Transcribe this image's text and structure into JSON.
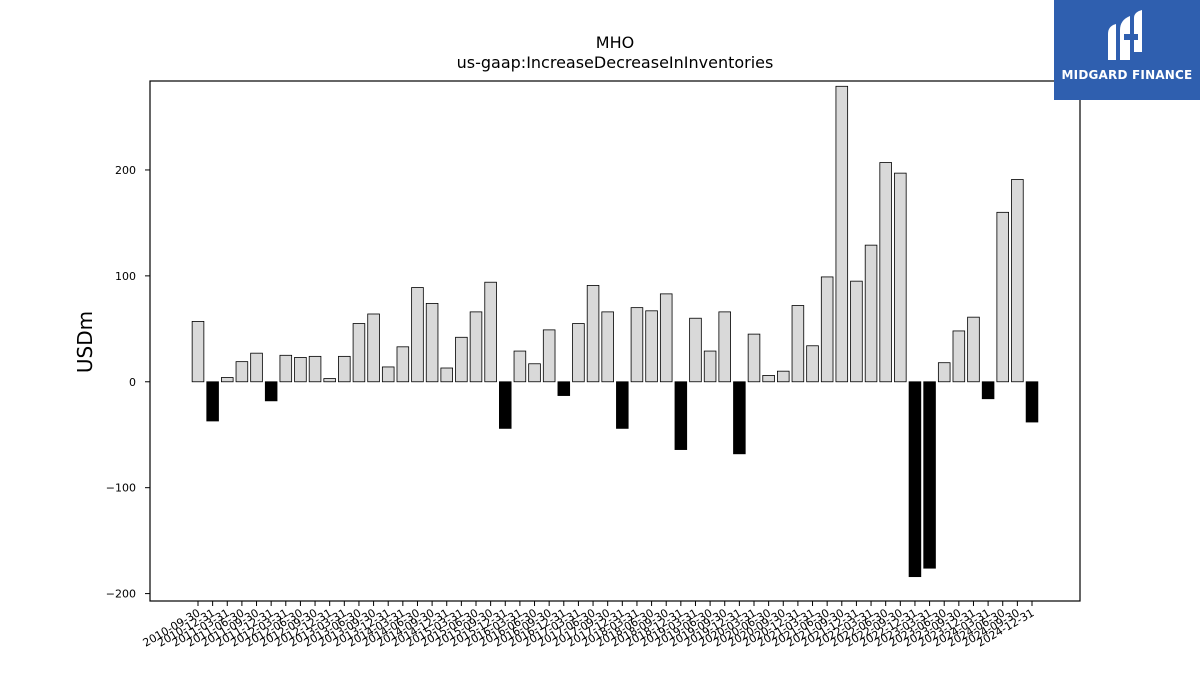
{
  "logo": {
    "text": "MIDGARD FINANCE",
    "icon": "midgard-logo-icon"
  },
  "chart_data": {
    "type": "bar",
    "title": "MHO",
    "subtitle": "us-gaap:IncreaseDecreaseInInventories",
    "xlabel": "",
    "ylabel": "USDm",
    "ylim": [
      -207,
      284
    ],
    "yticks": [
      -200,
      -100,
      0,
      100,
      200
    ],
    "grid": false,
    "colors": {
      "positive": "#d9d9d9",
      "negative": "#000000",
      "edge": "#000000"
    },
    "categories": [
      "2010-09-30",
      "2010-12-31",
      "2011-03-31",
      "2011-06-30",
      "2011-09-30",
      "2011-12-31",
      "2012-03-31",
      "2012-06-30",
      "2012-09-30",
      "2012-12-31",
      "2013-03-31",
      "2013-06-30",
      "2013-09-30",
      "2013-12-31",
      "2014-03-31",
      "2014-06-30",
      "2014-09-30",
      "2014-12-31",
      "2015-03-31",
      "2015-06-30",
      "2015-09-30",
      "2015-12-31",
      "2016-03-31",
      "2016-06-30",
      "2016-09-30",
      "2016-12-31",
      "2017-03-31",
      "2017-06-30",
      "2017-09-30",
      "2017-12-31",
      "2018-03-31",
      "2018-06-30",
      "2018-09-30",
      "2018-12-31",
      "2019-03-31",
      "2019-06-30",
      "2019-09-30",
      "2019-12-31",
      "2020-03-31",
      "2020-06-30",
      "2020-09-30",
      "2020-12-31",
      "2021-03-31",
      "2021-06-30",
      "2021-09-30",
      "2021-12-31",
      "2022-03-31",
      "2022-06-30",
      "2022-09-30",
      "2022-12-31",
      "2023-03-31",
      "2023-06-30",
      "2023-09-30",
      "2023-12-31",
      "2024-03-31",
      "2024-06-30",
      "2024-09-30",
      "2024-12-31"
    ],
    "values": [
      57,
      -37,
      4,
      19,
      27,
      -18,
      25,
      23,
      24,
      3,
      24,
      55,
      64,
      14,
      33,
      89,
      74,
      13,
      42,
      66,
      94,
      -44,
      29,
      17,
      49,
      -13,
      55,
      91,
      66,
      -44,
      70,
      67,
      83,
      -64,
      60,
      29,
      66,
      -68,
      45,
      6,
      10,
      72,
      34,
      99,
      279,
      95,
      129,
      207,
      197,
      -184,
      -176,
      18,
      48,
      61,
      -16,
      160,
      191,
      -38
    ]
  }
}
